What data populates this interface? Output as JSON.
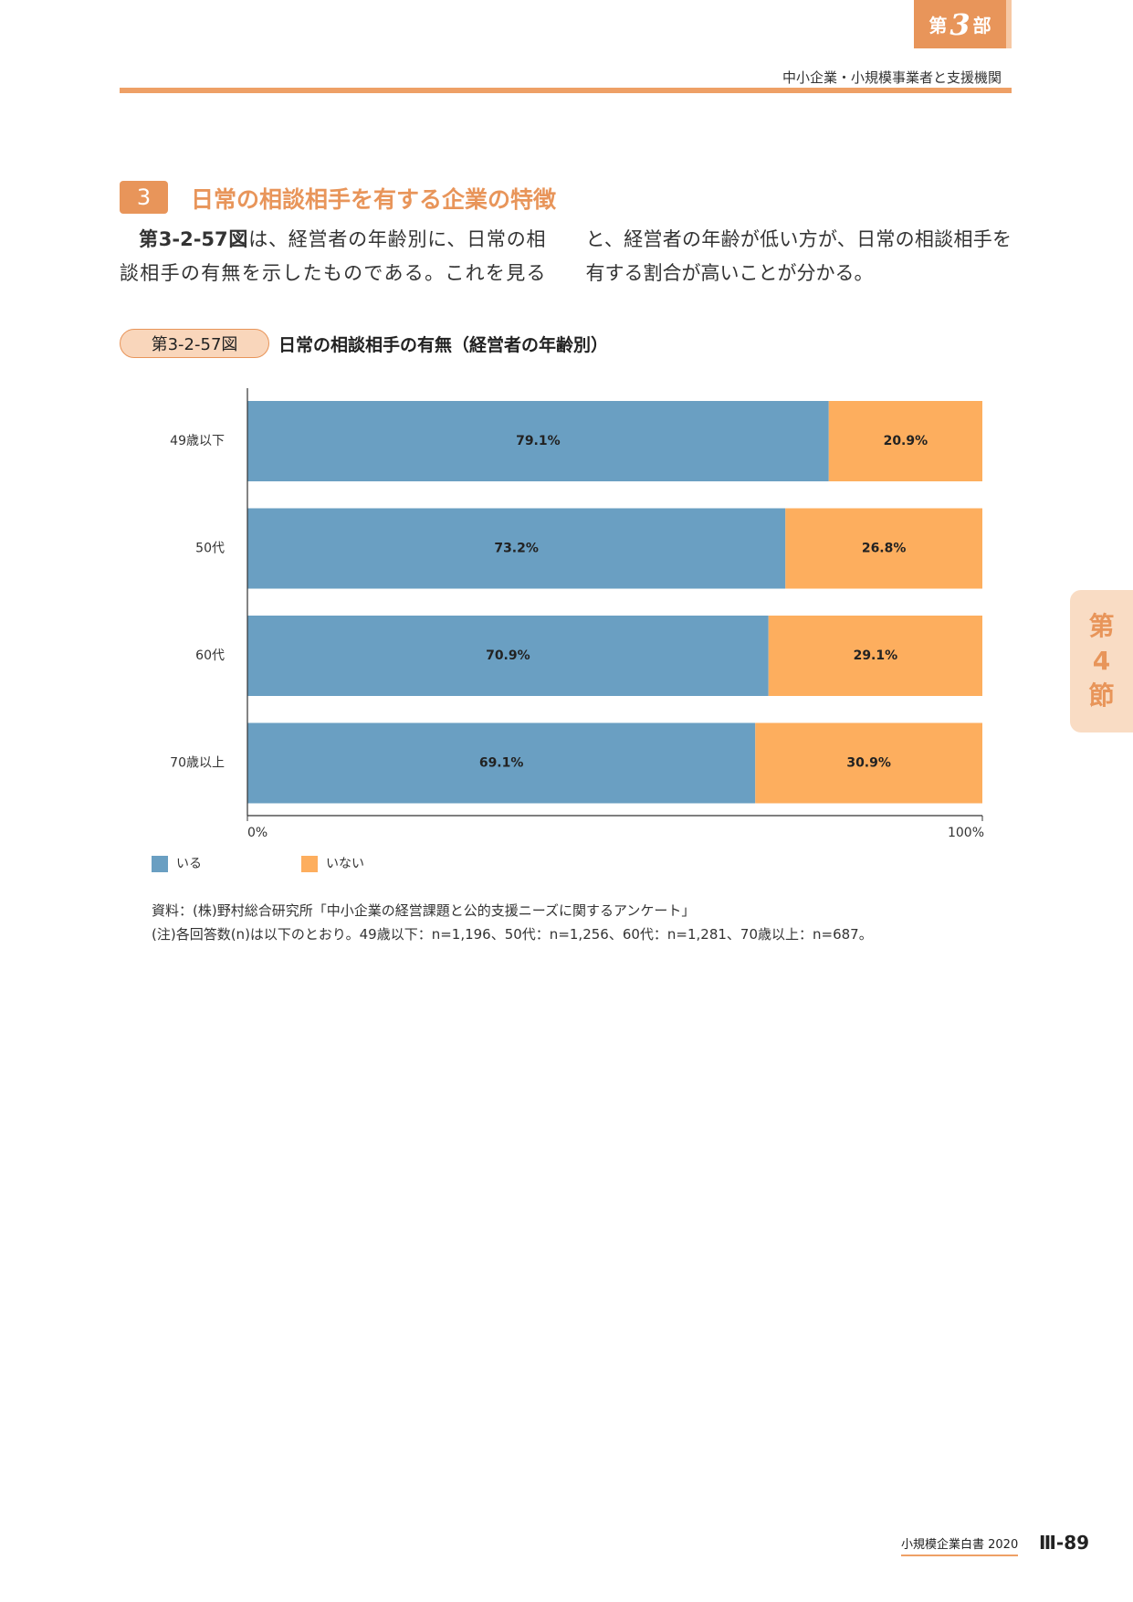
{
  "header": {
    "part_tab": {
      "prefix": "第",
      "number": "3",
      "suffix": "部"
    },
    "subtitle": "中小企業・小規模事業者と支援機関"
  },
  "section": {
    "number": "3",
    "title": "日常の相談相手を有する企業の特徴"
  },
  "body": {
    "lead": "第3-2-57図",
    "text": "は、経営者の年齢別に、日常の相談相手の有無を示したものである。これを見ると、経営者の年齢が低い方が、日常の相談相手を有する割合が高いことが分かる。"
  },
  "figure": {
    "label": "第3-2-57図",
    "title": "日常の相談相手の有無（経営者の年齢別）"
  },
  "chart_data": {
    "type": "stacked-bar-horizontal",
    "categories": [
      "49歳以下",
      "50代",
      "60代",
      "70歳以上"
    ],
    "series": [
      {
        "name": "いる",
        "color": "#6a9fc2",
        "values": [
          79.1,
          73.2,
          70.9,
          69.1
        ],
        "value_labels": [
          "79.1%",
          "73.2%",
          "70.9%",
          "69.1%"
        ]
      },
      {
        "name": "いない",
        "color": "#fdae5e",
        "values": [
          20.9,
          26.8,
          29.1,
          30.9
        ],
        "value_labels": [
          "20.9%",
          "26.8%",
          "29.1%",
          "30.9%"
        ]
      }
    ],
    "xlim": [
      0,
      100
    ],
    "xticks": [
      {
        "value": 0,
        "label": "0%"
      },
      {
        "value": 100,
        "label": "100%"
      }
    ]
  },
  "notes": {
    "source": "資料：(株)野村総合研究所「中小企業の経営課題と公的支援ニーズに関するアンケート」",
    "note": "(注)各回答数(n)は以下のとおり。49歳以下：n=1,196、50代：n=1,256、60代：n=1,281、70歳以上：n=687。"
  },
  "side_tab": {
    "prefix": "第",
    "number": "4",
    "suffix": "節"
  },
  "footer": {
    "book": "小規模企業白書 2020",
    "page": "Ⅲ-89"
  }
}
